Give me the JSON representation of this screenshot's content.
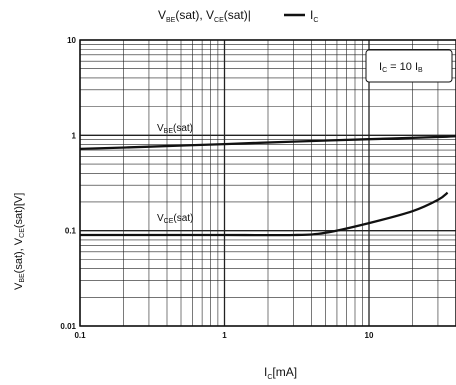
{
  "chart_data": {
    "type": "line",
    "title": {
      "p1": "V",
      "s1": "BE",
      "p2": "(sat), V",
      "s2": "CE",
      "p3": "(sat)|",
      "legend_text": "I",
      "legend_sub": "C"
    },
    "xlabel": {
      "main": "I",
      "sub": "C",
      "rest": "[mA]"
    },
    "ylabel": {
      "p1": "V",
      "s1": "BE",
      "p2": "(sat), V",
      "s2": "CE",
      "p3": "(sat)[V]"
    },
    "x_scale": "log",
    "y_scale": "log",
    "xlim": [
      0.1,
      40
    ],
    "ylim": [
      0.01,
      10
    ],
    "grid": true,
    "x_ticks": [
      "0.1",
      "1",
      "10"
    ],
    "y_ticks": [
      "0.01",
      "0.1",
      "1",
      "10"
    ],
    "annotation": {
      "p1": "I",
      "s1": "C",
      "p2": " = 10 I",
      "s2": "B"
    },
    "series": [
      {
        "label": {
          "main": "V",
          "sub": "BE",
          "rest": "(sat)"
        },
        "x": [
          0.1,
          0.3,
          1,
          3,
          10,
          30,
          40
        ],
        "y": [
          0.72,
          0.76,
          0.81,
          0.86,
          0.91,
          0.96,
          0.98
        ]
      },
      {
        "label": {
          "main": "V",
          "sub": "CE",
          "rest": "(sat)"
        },
        "x": [
          0.1,
          0.5,
          1,
          3,
          5,
          10,
          20,
          30,
          35
        ],
        "y": [
          0.09,
          0.09,
          0.09,
          0.09,
          0.095,
          0.12,
          0.16,
          0.21,
          0.25
        ]
      }
    ]
  }
}
